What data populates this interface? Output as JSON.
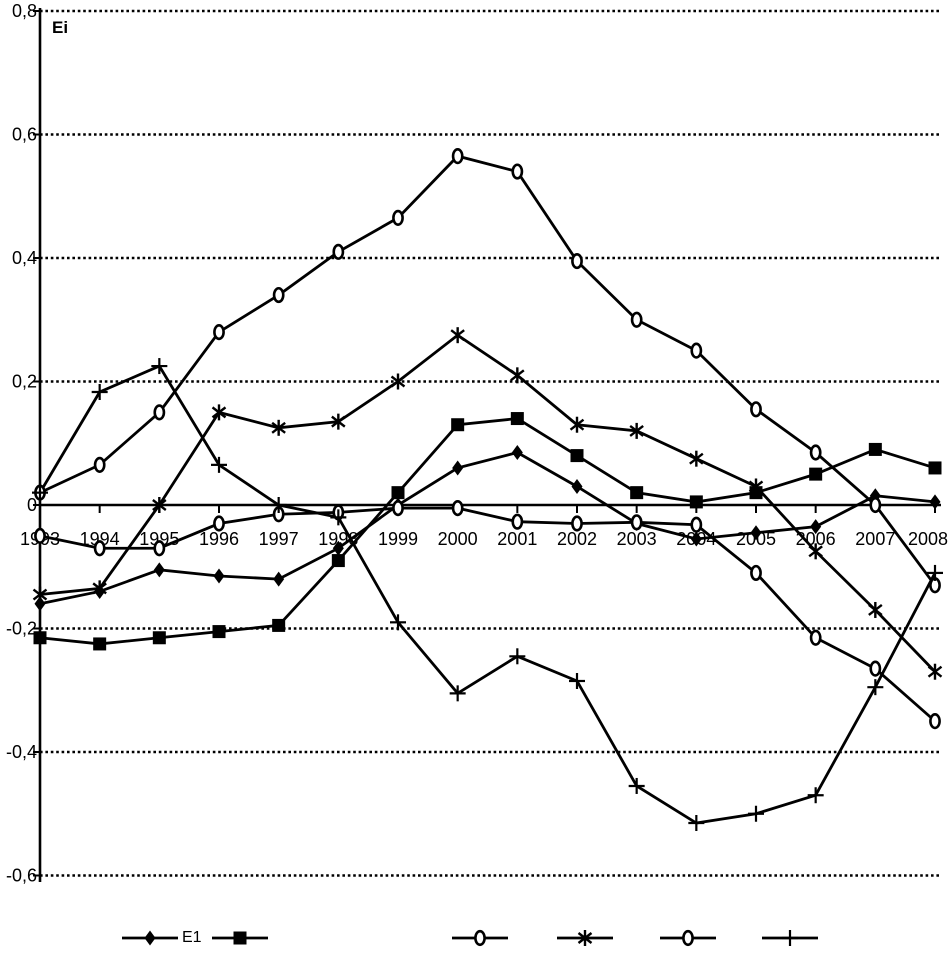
{
  "chart_data": {
    "type": "line",
    "title": "Ei",
    "categories": [
      "1993",
      "1994",
      "1995",
      "1996",
      "1997",
      "1998",
      "1999",
      "2000",
      "2001",
      "2002",
      "2003",
      "2004",
      "2005",
      "2006",
      "2007",
      "2008"
    ],
    "xlabel": "",
    "ylabel": "Ei",
    "ylim": [
      -0.6,
      0.8
    ],
    "ytick_interval": 0.2,
    "ytick_labels": [
      "0,8",
      "0,6",
      "0,4",
      "0,2",
      "0",
      "-0,2",
      "-0,4",
      "-0,6"
    ],
    "decimal_separator": ",",
    "grid": "horizontal-dotted",
    "zero_line": "solid",
    "legend_position": "bottom",
    "line_color": "#000000",
    "background_color": "#ffffff",
    "series": [
      {
        "name": "E1",
        "marker": "diamond",
        "values": [
          -0.16,
          -0.14,
          -0.105,
          -0.115,
          -0.12,
          -0.07,
          0.0,
          0.06,
          0.085,
          0.03,
          -0.03,
          -0.055,
          -0.045,
          -0.035,
          0.015,
          0.005
        ]
      },
      {
        "name": "",
        "marker": "square",
        "values": [
          -0.215,
          -0.225,
          -0.215,
          -0.205,
          -0.195,
          -0.09,
          0.02,
          0.13,
          0.14,
          0.08,
          0.02,
          0.005,
          0.02,
          0.05,
          0.09,
          0.06
        ]
      },
      {
        "name": "",
        "marker": "circle",
        "values": [
          0.02,
          0.065,
          0.15,
          0.28,
          0.34,
          0.41,
          0.465,
          0.565,
          0.54,
          0.395,
          0.3,
          0.25,
          0.155,
          0.085,
          0.0,
          -0.13
        ]
      },
      {
        "name": "",
        "marker": "asterisk",
        "values": [
          -0.145,
          -0.135,
          0.0,
          0.15,
          0.125,
          0.135,
          0.2,
          0.275,
          0.21,
          0.13,
          0.12,
          0.075,
          0.03,
          -0.075,
          -0.17,
          -0.27
        ]
      },
      {
        "name": "",
        "marker": "circle",
        "values": [
          -0.05,
          -0.07,
          -0.07,
          -0.03,
          -0.015,
          -0.012,
          -0.005,
          -0.005,
          -0.027,
          -0.03,
          -0.028,
          -0.032,
          -0.11,
          -0.215,
          -0.265,
          -0.35
        ]
      },
      {
        "name": "",
        "marker": "plus",
        "values": [
          0.02,
          0.183,
          0.225,
          0.065,
          0.0,
          -0.02,
          -0.19,
          -0.305,
          -0.245,
          -0.285,
          -0.455,
          -0.515,
          -0.5,
          -0.47,
          -0.295,
          -0.11
        ]
      }
    ]
  },
  "legend": {
    "items": [
      {
        "marker": "diamond",
        "label": "E1"
      },
      {
        "marker": "square",
        "label": ""
      },
      {
        "marker": "circle",
        "label": ""
      },
      {
        "marker": "asterisk",
        "label": ""
      },
      {
        "marker": "circle",
        "label": ""
      },
      {
        "marker": "plus",
        "label": ""
      }
    ]
  }
}
